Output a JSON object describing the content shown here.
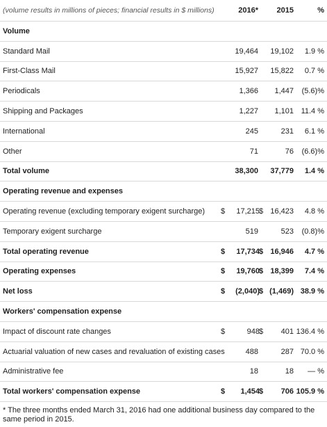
{
  "header": {
    "caption": "(volume results in millions of pieces; financial results in $ millions)",
    "col_2016": "2016*",
    "col_2015": "2015",
    "col_pct": "%"
  },
  "rows": [
    {
      "label": "Volume",
      "v2016": "",
      "v2015": "",
      "pct": "",
      "bold": true
    },
    {
      "label": "Standard Mail",
      "v2016": "19,464",
      "v2015": "19,102",
      "pct": "1.9 %"
    },
    {
      "label": "First-Class Mail",
      "v2016": "15,927",
      "v2015": "15,822",
      "pct": "0.7 %"
    },
    {
      "label": "Periodicals",
      "v2016": "1,366",
      "v2015": "1,447",
      "pct": "(5.6)%"
    },
    {
      "label": "Shipping and Packages",
      "v2016": "1,227",
      "v2015": "1,101",
      "pct": "11.4 %"
    },
    {
      "label": "International",
      "v2016": "245",
      "v2015": "231",
      "pct": "6.1 %"
    },
    {
      "label": "Other",
      "v2016": "71",
      "v2015": "76",
      "pct": "(6.6)%"
    },
    {
      "label": "Total volume",
      "v2016": "38,300",
      "v2015": "37,779",
      "pct": "1.4 %",
      "bold": true
    },
    {
      "label": "Operating revenue and expenses",
      "v2016": "",
      "v2015": "",
      "pct": "",
      "bold": true
    },
    {
      "label": "Operating revenue (excluding temporary exigent surcharge)",
      "cur2016": "$",
      "v2016": "17,215",
      "cur2015": "$",
      "v2015": "16,423",
      "pct": "4.8 %"
    },
    {
      "label": "Temporary exigent surcharge",
      "v2016": "519",
      "v2015": "523",
      "pct": "(0.8)%"
    },
    {
      "label": "Total operating revenue",
      "cur2016": "$",
      "v2016": "17,734",
      "cur2015": "$",
      "v2015": "16,946",
      "pct": "4.7 %",
      "bold": true
    },
    {
      "label": "Operating expenses",
      "cur2016": "$",
      "v2016": "19,760",
      "cur2015": "$",
      "v2015": "18,399",
      "pct": "7.4 %",
      "bold": true
    },
    {
      "label": "Net loss",
      "cur2016": "$",
      "v2016": "(2,040)",
      "cur2015": "$",
      "v2015": "(1,469)",
      "pct": "38.9 %",
      "bold": true
    },
    {
      "label": "Workers' compensation expense",
      "v2016": "",
      "v2015": "",
      "pct": "",
      "bold": true
    },
    {
      "label": "Impact of discount rate changes",
      "cur2016": "$",
      "v2016": "948",
      "cur2015": "$",
      "v2015": "401",
      "pct": "136.4 %"
    },
    {
      "label": "Actuarial valuation of new cases and revaluation of existing cases",
      "v2016": "488",
      "v2015": "287",
      "pct": "70.0 %"
    },
    {
      "label": "Administrative fee",
      "v2016": "18",
      "v2015": "18",
      "pct": "— %"
    },
    {
      "label": "Total workers' compensation expense",
      "cur2016": "$",
      "v2016": "1,454",
      "cur2015": "$",
      "v2015": "706",
      "pct": "105.9 %",
      "bold": true
    }
  ],
  "footnote": "* The three months ended March 31, 2016 had one additional business day compared to the same period in 2015."
}
